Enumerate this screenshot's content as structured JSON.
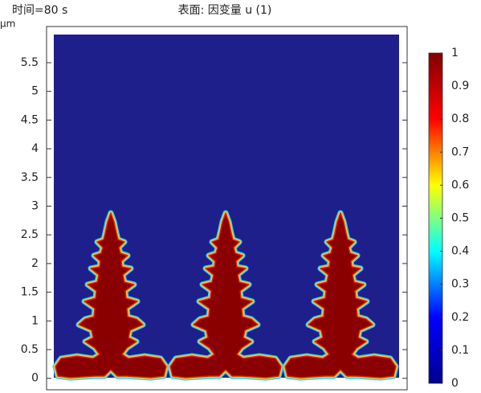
{
  "chart_data": {
    "type": "surface",
    "time_label": "时间=80 s",
    "title": "表面: 因变量 u (1)",
    "y_unit": "μm",
    "ylim": [
      -0.2,
      6.13
    ],
    "yticks": [
      0,
      0.5,
      1,
      1.5,
      2,
      2.5,
      3,
      3.5,
      4,
      4.5,
      5,
      5.5
    ],
    "colorbar": {
      "clim": [
        0,
        1
      ],
      "ticks": [
        0,
        0.1,
        0.2,
        0.3,
        0.4,
        0.5,
        0.6,
        0.7,
        0.8,
        0.9,
        1
      ],
      "colormap": [
        "#00008f",
        "#0000ff",
        "#00ffff",
        "#ffff00",
        "#ff0000",
        "#800000"
      ]
    }
  }
}
